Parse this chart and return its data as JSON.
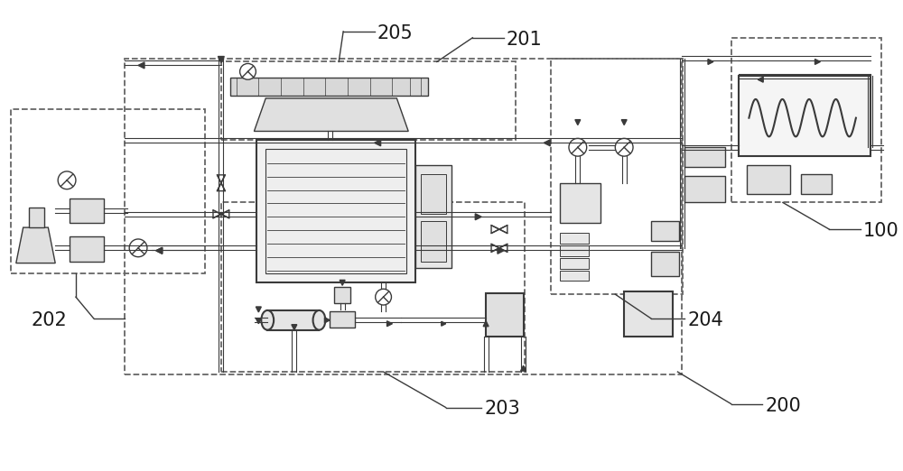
{
  "bg_color": "#ffffff",
  "line_color": "#3a3a3a",
  "dash_color": "#666666",
  "label_200": "200",
  "label_201": "201",
  "label_202": "202",
  "label_203": "203",
  "label_204": "204",
  "label_205": "205",
  "label_100": "100"
}
